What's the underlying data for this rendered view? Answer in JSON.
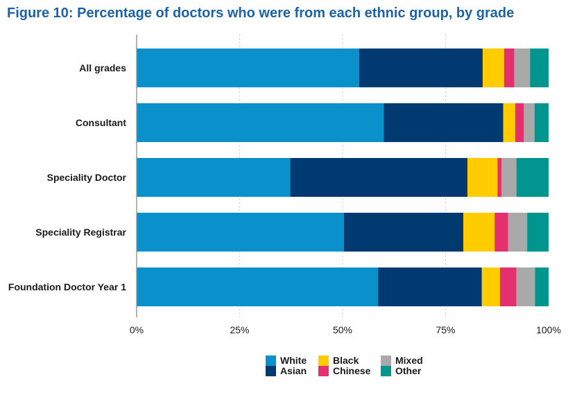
{
  "chart_data": {
    "type": "bar",
    "orientation": "horizontal",
    "stacked": true,
    "title": "Figure 10: Percentage of doctors who were from each ethnic group, by grade",
    "categories": [
      "All grades",
      "Consultant",
      "Speciality Doctor",
      "Speciality Registrar",
      "Foundation Doctor Year 1"
    ],
    "series": [
      {
        "name": "White",
        "color": "#0a91cc",
        "values": [
          54,
          60,
          37.3,
          50.3,
          58.6
        ]
      },
      {
        "name": "Asian",
        "color": "#003a70",
        "values": [
          30,
          29,
          43,
          29,
          25.2
        ]
      },
      {
        "name": "Black",
        "color": "#ffcc00",
        "values": [
          5.2,
          2.9,
          7.3,
          7.6,
          4.4
        ]
      },
      {
        "name": "Chinese",
        "color": "#e5306f",
        "values": [
          2.5,
          2.1,
          1,
          3.3,
          4
        ]
      },
      {
        "name": "Mixed",
        "color": "#a9a9a9",
        "values": [
          3.8,
          2.6,
          3.6,
          4.6,
          4.5
        ]
      },
      {
        "name": "Other",
        "color": "#00958f",
        "values": [
          4.5,
          3.4,
          7.8,
          5.2,
          3.3
        ]
      }
    ],
    "xlim": [
      0,
      100
    ],
    "xticks": [
      "0%",
      "25%",
      "50%",
      "75%",
      "100%"
    ],
    "xlabel": "",
    "ylabel": "",
    "grid": true,
    "legend": "bottom"
  }
}
